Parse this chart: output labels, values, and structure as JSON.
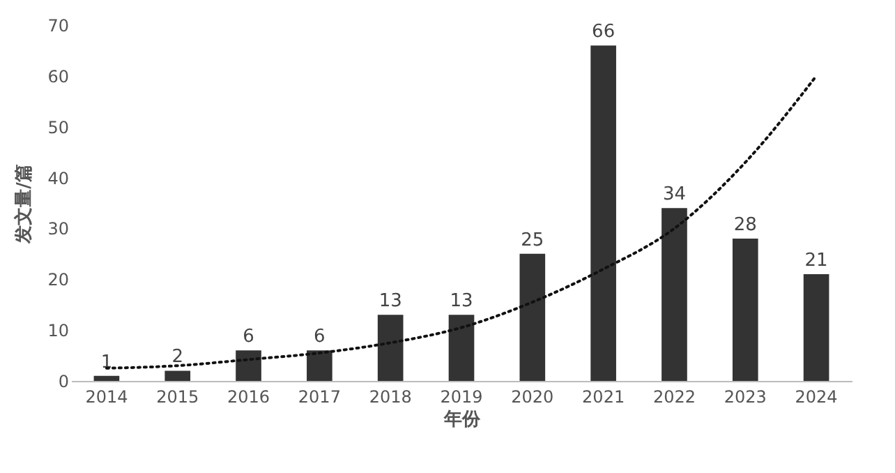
{
  "chart_data": {
    "type": "bar",
    "xlabel": "年份",
    "ylabel": "发文量/篇",
    "categories": [
      "2014",
      "2015",
      "2016",
      "2017",
      "2018",
      "2019",
      "2020",
      "2021",
      "2022",
      "2023",
      "2024"
    ],
    "ylim": [
      0,
      70
    ],
    "yticks": [
      0,
      10,
      20,
      30,
      40,
      50,
      60,
      70
    ],
    "series": [
      {
        "color": "#333333",
        "values": [
          1,
          2,
          6,
          6,
          13,
          13,
          25,
          66,
          34,
          28,
          21
        ],
        "value_labels": [
          "1",
          "2",
          "6",
          "6",
          "13",
          "13",
          "25",
          "66",
          "34",
          "28",
          "21"
        ]
      },
      {
        "type": "line",
        "color": "#111111",
        "line_style": "dotted",
        "values": [
          2.5,
          3,
          4.2,
          5.5,
          7.5,
          10.5,
          15.5,
          22,
          30,
          43,
          60
        ]
      }
    ]
  }
}
